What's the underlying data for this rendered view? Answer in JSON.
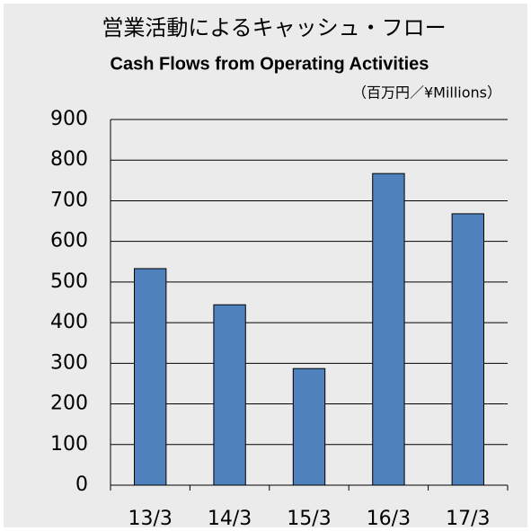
{
  "chart_data": {
    "type": "bar",
    "title": "営業活動によるキャッシュ・フロー",
    "subtitle": "Cash Flows from Operating Activities",
    "unit": "（百万円／¥Millions）",
    "categories": [
      "13/3",
      "14/3",
      "15/3",
      "16/3",
      "17/3"
    ],
    "values": [
      533,
      444,
      287,
      767,
      668
    ],
    "color": "#4f81bd",
    "ylim": [
      0,
      900
    ],
    "yticks": [
      0,
      100,
      200,
      300,
      400,
      500,
      600,
      700,
      800,
      900
    ],
    "grid": true
  }
}
